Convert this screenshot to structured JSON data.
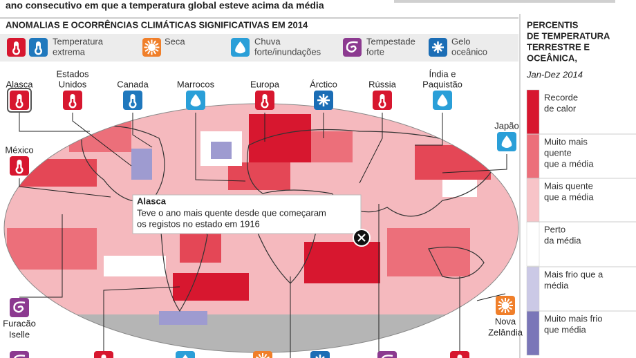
{
  "header": {
    "subtitle": "ano consecutivo em que a temperatura global esteve acima da média"
  },
  "section_title": "ANOMALIAS E OCORRÊNCIAS CLIMÁTICAS SIGNIFICATIVAS EM 2014",
  "legend": [
    {
      "lines": [
        "Temperatura",
        "extrema"
      ]
    },
    {
      "lines": [
        "Seca"
      ]
    },
    {
      "lines": [
        "Chuva",
        "forte/inundações"
      ]
    },
    {
      "lines": [
        "Tempestade",
        "forte"
      ]
    },
    {
      "lines": [
        "Gelo",
        "oceânico"
      ]
    }
  ],
  "locations": [
    {
      "lines": [
        "Alasca"
      ]
    },
    {
      "lines": [
        "Estados",
        "Unidos"
      ]
    },
    {
      "lines": [
        "Canada"
      ]
    },
    {
      "lines": [
        "Marrocos"
      ]
    },
    {
      "lines": [
        "Europa"
      ]
    },
    {
      "lines": [
        "Árctico"
      ]
    },
    {
      "lines": [
        "Rússia"
      ]
    },
    {
      "lines": [
        "Índia e",
        "Paquistão"
      ]
    },
    {
      "lines": [
        "Japão"
      ]
    },
    {
      "lines": [
        "México"
      ]
    },
    {
      "lines": [
        "Furacão",
        "Iselle"
      ]
    },
    {
      "lines": [
        "Nova",
        "Zelândia"
      ]
    }
  ],
  "tooltip": {
    "title": "Alasca",
    "lines": [
      "Teve o ano mais quente desde que começaram",
      "os registos no estado em 1916"
    ]
  },
  "percentile_legend": {
    "title": [
      "PERCENTIS",
      "DE TEMPERATURA",
      "TERRESTRE E",
      "OCEÂNICA,"
    ],
    "period": "Jan-Dez 2014",
    "items": [
      {
        "lines": [
          "Recorde",
          "de calor"
        ],
        "color": "#d7172f"
      },
      {
        "lines": [
          "Muito mais",
          "quente",
          "que a média"
        ],
        "color": "#ec6f7a"
      },
      {
        "lines": [
          "Mais quente",
          "que a média"
        ],
        "color": "#f7c4c8"
      },
      {
        "lines": [
          "Perto",
          "da média"
        ],
        "color": "#ffffff"
      },
      {
        "lines": [
          "Mais frio que a",
          "média"
        ],
        "color": "#cbc9e6"
      },
      {
        "lines": [
          "Muito mais frio",
          "que média"
        ],
        "color": "#7a76b8"
      }
    ]
  }
}
